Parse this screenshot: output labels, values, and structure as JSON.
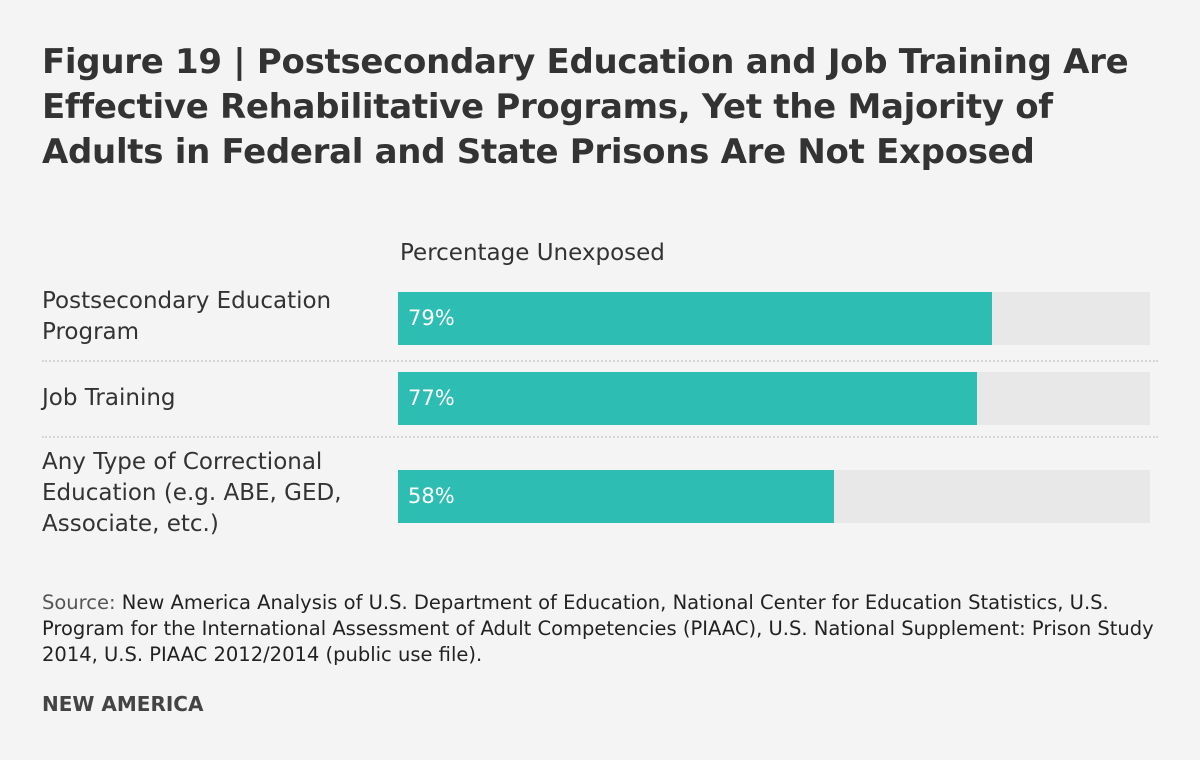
{
  "chart_data": {
    "type": "bar",
    "orientation": "horizontal",
    "title": "Figure 19 | Postsecondary Education and Job Training Are Effective Rehabilitative Programs, Yet the Majority of Adults in Federal and State Prisons Are Not Exposed",
    "subtitle": "Percentage Unexposed",
    "categories": [
      "Postsecondary Education Program",
      "Job Training",
      "Any Type of Correctional Education (e.g. ABE, GED, Associate, etc.)"
    ],
    "values": [
      79,
      77,
      58
    ],
    "data_labels": [
      "79%",
      "77%",
      "58%"
    ],
    "xlim": [
      0,
      100
    ],
    "xlabel": "",
    "ylabel": "",
    "bar_color": "#2ebdb2",
    "track_color": "#e8e8e8"
  },
  "source_label": "Source:",
  "source_text": "New America Analysis of U.S. Department of Education, National Center for Education Statistics, U.S. Program for the International Assessment of Adult Competencies (PIAAC), U.S. National Supplement: Prison Study 2014, U.S. PIAAC 2012/2014 (public use file).",
  "brand": "NEW AMERICA"
}
